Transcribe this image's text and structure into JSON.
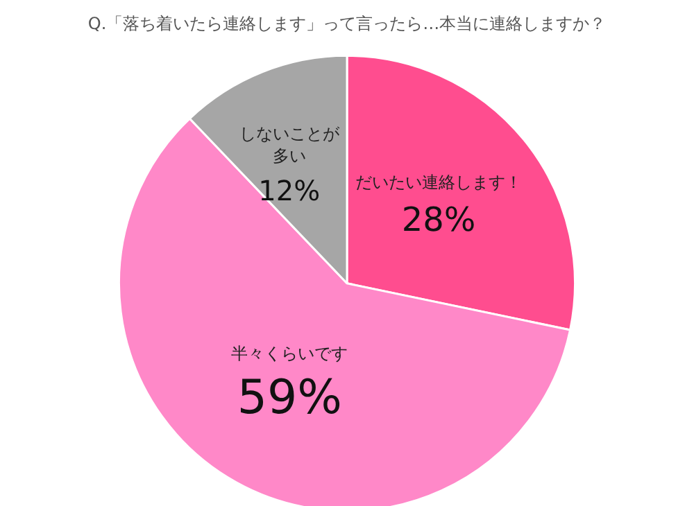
{
  "chart_data": {
    "type": "pie",
    "title": "Q.「落ち着いたら連絡します」って言ったら…本当に連絡しますか？",
    "categories": [
      "だいたい連絡します！",
      "半々くらいです",
      "しないことが多い"
    ],
    "values": [
      28,
      59,
      12
    ],
    "value_labels": [
      "28%",
      "59%",
      "12%"
    ],
    "colors": [
      "#ff4d8f",
      "#ff88c8",
      "#a6a6a6"
    ],
    "legend": false
  }
}
